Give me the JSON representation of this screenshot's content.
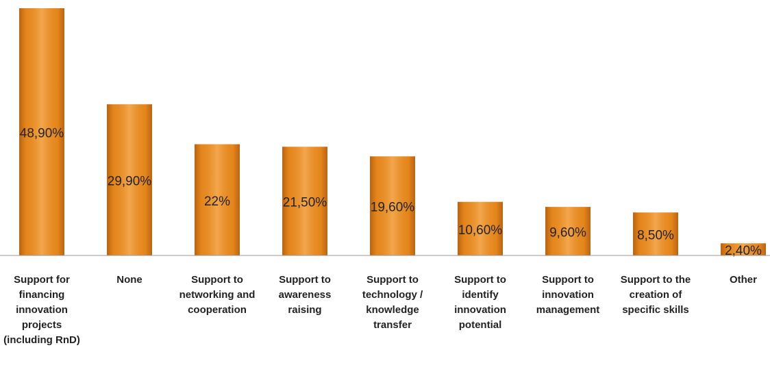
{
  "chart_data": {
    "type": "bar",
    "categories": [
      "Support for financing innovation projects (including RnD)",
      "None",
      "Support to networking and cooperation",
      "Support to awareness raising",
      "Support to technology / knowledge transfer",
      "Support to identify innovation potential",
      "Support to innovation management",
      "Support to the creation of specific skills",
      "Other"
    ],
    "values": [
      48.9,
      29.9,
      22,
      21.5,
      19.6,
      10.6,
      9.6,
      8.5,
      2.4
    ],
    "value_labels": [
      "48,90%",
      "29,90%",
      "22%",
      "21,50%",
      "19,60%",
      "10,60%",
      "9,60%",
      "8,50%",
      "2,40%"
    ],
    "color": "#f0901e"
  }
}
